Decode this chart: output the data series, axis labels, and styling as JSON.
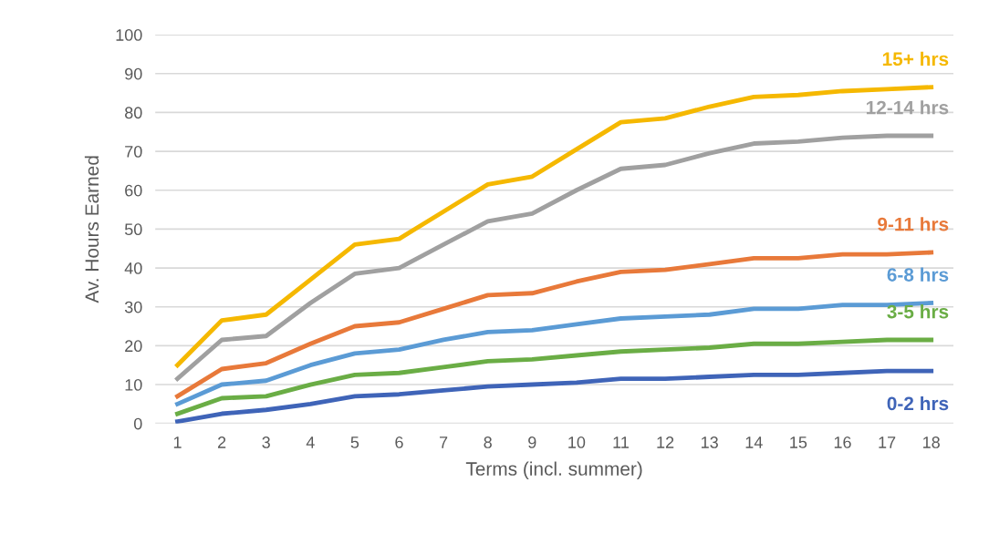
{
  "chart_data": {
    "type": "line",
    "xlabel": "Terms (incl. summer)",
    "ylabel": "Av. Hours Earned",
    "categories": [
      "1",
      "2",
      "3",
      "4",
      "5",
      "6",
      "7",
      "8",
      "9",
      "10",
      "11",
      "12",
      "13",
      "14",
      "15",
      "16",
      "17",
      "18"
    ],
    "ylim": [
      0,
      100
    ],
    "yticks": [
      0,
      10,
      20,
      30,
      40,
      50,
      60,
      70,
      80,
      90,
      100
    ],
    "grid": "y",
    "legend": false,
    "marker": "none",
    "line_style": "solid",
    "series": [
      {
        "name": "15+ hrs",
        "color": "#f5b800",
        "values": [
          15,
          26.5,
          28,
          37,
          46,
          47.5,
          54.5,
          61.5,
          63.5,
          70.5,
          77.5,
          78.5,
          81.5,
          84,
          84.5,
          85.5,
          86,
          86.5
        ]
      },
      {
        "name": "12-14 hrs",
        "color": "#a0a0a0",
        "values": [
          11.5,
          21.5,
          22.5,
          31,
          38.5,
          40,
          46,
          52,
          54,
          60,
          65.5,
          66.5,
          69.5,
          72,
          72.5,
          73.5,
          74,
          74
        ]
      },
      {
        "name": "9-11 hrs",
        "color": "#e8793a",
        "values": [
          7,
          14,
          15.5,
          20.5,
          25,
          26,
          29.5,
          33,
          33.5,
          36.5,
          39,
          39.5,
          41,
          42.5,
          42.5,
          43.5,
          43.5,
          44
        ]
      },
      {
        "name": "6-8 hrs",
        "color": "#5b9bd5",
        "values": [
          5,
          10,
          11,
          15,
          18,
          19,
          21.5,
          23.5,
          24,
          25.5,
          27,
          27.5,
          28,
          29.5,
          29.5,
          30.5,
          30.5,
          31
        ]
      },
      {
        "name": "3-5 hrs",
        "color": "#6aad45",
        "values": [
          2.5,
          6.5,
          7,
          10,
          12.5,
          13,
          14.5,
          16,
          16.5,
          17.5,
          18.5,
          19,
          19.5,
          20.5,
          20.5,
          21,
          21.5,
          21.5
        ]
      },
      {
        "name": "0-2 hrs",
        "color": "#3f64b8",
        "values": [
          0.5,
          2.5,
          3.5,
          5,
          7,
          7.5,
          8.5,
          9.5,
          10,
          10.5,
          11.5,
          11.5,
          12,
          12.5,
          12.5,
          13,
          13.5,
          13.5
        ]
      }
    ]
  }
}
